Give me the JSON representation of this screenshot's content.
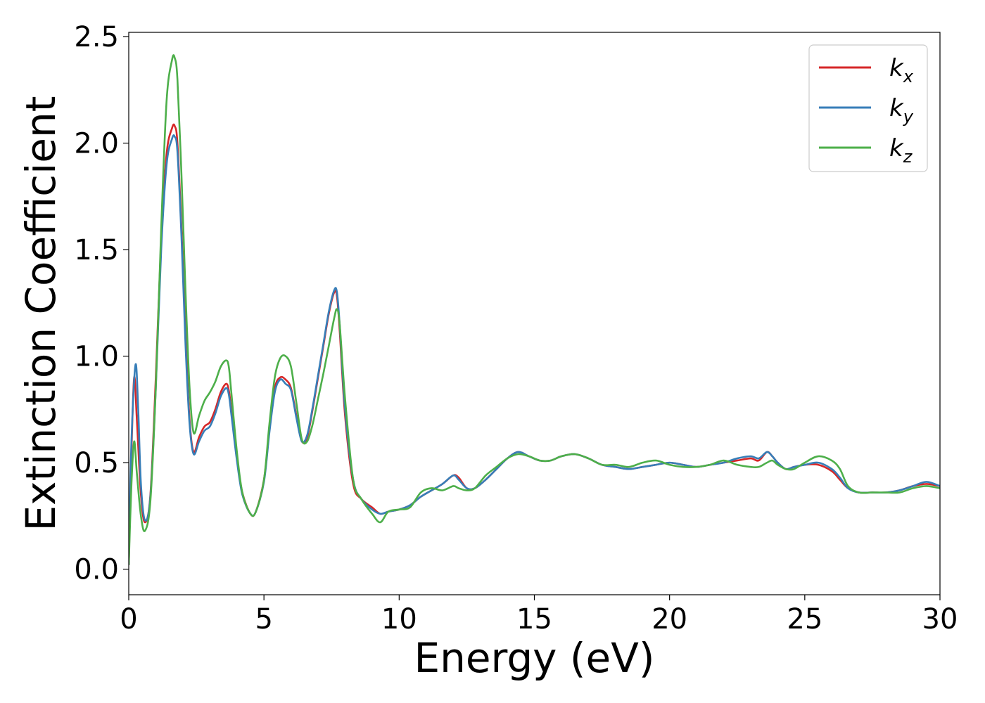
{
  "chart_data": {
    "type": "line",
    "title": "",
    "xlabel": "Energy (eV)",
    "ylabel": "Extinction Coefficient",
    "xlim": [
      0,
      30
    ],
    "ylim": [
      -0.12,
      2.52
    ],
    "xticks": [
      0,
      5,
      10,
      15,
      20,
      25,
      30
    ],
    "yticks": [
      0.0,
      0.5,
      1.0,
      1.5,
      2.0,
      2.5
    ],
    "xtick_labels": [
      "0",
      "5",
      "10",
      "15",
      "20",
      "25",
      "30"
    ],
    "ytick_labels": [
      "0.0",
      "0.5",
      "1.0",
      "1.5",
      "2.0",
      "2.5"
    ],
    "grid": false,
    "legend_position": "top-right",
    "series": [
      {
        "name": "k",
        "subscript": "x",
        "color": "#d62728",
        "x": [
          0,
          0.1,
          0.2,
          0.3,
          0.45,
          0.6,
          0.8,
          1.0,
          1.2,
          1.4,
          1.6,
          1.7,
          1.8,
          1.95,
          2.1,
          2.25,
          2.4,
          2.6,
          2.8,
          3.0,
          3.2,
          3.4,
          3.6,
          3.7,
          3.8,
          4.0,
          4.2,
          4.5,
          4.7,
          5.0,
          5.2,
          5.4,
          5.6,
          5.8,
          6.0,
          6.2,
          6.4,
          6.6,
          6.8,
          7.0,
          7.2,
          7.4,
          7.6,
          7.7,
          7.8,
          8.0,
          8.3,
          8.6,
          9.0,
          9.3,
          9.6,
          10.0,
          10.4,
          10.8,
          11.2,
          11.6,
          12.0,
          12.2,
          12.5,
          12.8,
          13.2,
          13.6,
          14.0,
          14.4,
          14.8,
          15.2,
          15.6,
          16.0,
          16.5,
          17.0,
          17.5,
          18.0,
          18.5,
          19.0,
          19.5,
          20.0,
          20.5,
          21.0,
          21.5,
          22.0,
          22.5,
          23.0,
          23.3,
          23.6,
          23.8,
          24.0,
          24.3,
          24.6,
          25.0,
          25.5,
          26.0,
          26.3,
          26.6,
          27.0,
          27.5,
          28.0,
          28.5,
          29.0,
          29.5,
          30.0
        ],
        "y": [
          0.02,
          0.55,
          0.9,
          0.7,
          0.35,
          0.22,
          0.35,
          0.9,
          1.55,
          1.95,
          2.07,
          2.08,
          2.0,
          1.6,
          1.1,
          0.7,
          0.55,
          0.62,
          0.67,
          0.69,
          0.75,
          0.83,
          0.87,
          0.84,
          0.74,
          0.52,
          0.36,
          0.26,
          0.27,
          0.42,
          0.65,
          0.85,
          0.9,
          0.89,
          0.85,
          0.72,
          0.6,
          0.62,
          0.75,
          0.9,
          1.05,
          1.2,
          1.3,
          1.28,
          1.12,
          0.72,
          0.4,
          0.33,
          0.29,
          0.26,
          0.27,
          0.28,
          0.3,
          0.34,
          0.37,
          0.4,
          0.44,
          0.43,
          0.38,
          0.38,
          0.42,
          0.47,
          0.52,
          0.55,
          0.53,
          0.51,
          0.51,
          0.53,
          0.54,
          0.52,
          0.49,
          0.48,
          0.47,
          0.48,
          0.49,
          0.5,
          0.49,
          0.48,
          0.49,
          0.5,
          0.51,
          0.52,
          0.51,
          0.55,
          0.53,
          0.5,
          0.47,
          0.48,
          0.49,
          0.49,
          0.46,
          0.42,
          0.38,
          0.36,
          0.36,
          0.36,
          0.37,
          0.39,
          0.4,
          0.39
        ]
      },
      {
        "name": "k",
        "subscript": "y",
        "color": "#377eb8",
        "x": [
          0,
          0.1,
          0.25,
          0.35,
          0.45,
          0.6,
          0.8,
          1.0,
          1.2,
          1.4,
          1.6,
          1.7,
          1.8,
          1.95,
          2.1,
          2.25,
          2.4,
          2.6,
          2.8,
          3.0,
          3.2,
          3.4,
          3.6,
          3.7,
          3.8,
          4.0,
          4.2,
          4.5,
          4.7,
          5.0,
          5.2,
          5.4,
          5.6,
          5.8,
          6.0,
          6.2,
          6.4,
          6.6,
          6.8,
          7.0,
          7.2,
          7.4,
          7.6,
          7.7,
          7.8,
          8.0,
          8.3,
          8.6,
          9.0,
          9.3,
          9.6,
          10.0,
          10.4,
          10.8,
          11.2,
          11.6,
          12.0,
          12.2,
          12.5,
          12.8,
          13.2,
          13.6,
          14.0,
          14.4,
          14.8,
          15.2,
          15.6,
          16.0,
          16.5,
          17.0,
          17.5,
          18.0,
          18.5,
          19.0,
          19.5,
          20.0,
          20.5,
          21.0,
          21.5,
          22.0,
          22.5,
          23.0,
          23.3,
          23.6,
          23.8,
          24.0,
          24.3,
          24.6,
          25.0,
          25.5,
          26.0,
          26.3,
          26.6,
          27.0,
          27.5,
          28.0,
          28.5,
          29.0,
          29.5,
          30.0
        ],
        "y": [
          0.02,
          0.6,
          0.96,
          0.75,
          0.4,
          0.23,
          0.34,
          0.85,
          1.5,
          1.9,
          2.02,
          2.03,
          1.96,
          1.56,
          1.05,
          0.68,
          0.54,
          0.6,
          0.65,
          0.67,
          0.73,
          0.81,
          0.85,
          0.82,
          0.72,
          0.51,
          0.35,
          0.26,
          0.27,
          0.41,
          0.64,
          0.83,
          0.89,
          0.87,
          0.84,
          0.71,
          0.6,
          0.63,
          0.76,
          0.91,
          1.06,
          1.21,
          1.31,
          1.3,
          1.15,
          0.75,
          0.42,
          0.33,
          0.28,
          0.26,
          0.27,
          0.28,
          0.3,
          0.34,
          0.37,
          0.4,
          0.44,
          0.42,
          0.38,
          0.38,
          0.42,
          0.47,
          0.52,
          0.55,
          0.53,
          0.51,
          0.51,
          0.53,
          0.54,
          0.52,
          0.49,
          0.48,
          0.47,
          0.48,
          0.49,
          0.5,
          0.49,
          0.48,
          0.49,
          0.5,
          0.52,
          0.53,
          0.52,
          0.55,
          0.53,
          0.5,
          0.47,
          0.48,
          0.49,
          0.5,
          0.47,
          0.43,
          0.38,
          0.36,
          0.36,
          0.36,
          0.37,
          0.39,
          0.41,
          0.39
        ]
      },
      {
        "name": "k",
        "subscript": "z",
        "color": "#4daf4a",
        "x": [
          0,
          0.1,
          0.2,
          0.3,
          0.45,
          0.6,
          0.8,
          1.0,
          1.2,
          1.4,
          1.6,
          1.7,
          1.8,
          1.95,
          2.1,
          2.25,
          2.4,
          2.6,
          2.8,
          3.0,
          3.2,
          3.4,
          3.6,
          3.7,
          3.8,
          4.0,
          4.2,
          4.5,
          4.7,
          5.0,
          5.2,
          5.4,
          5.6,
          5.8,
          6.0,
          6.2,
          6.4,
          6.6,
          6.8,
          7.0,
          7.2,
          7.4,
          7.6,
          7.7,
          7.8,
          8.0,
          8.3,
          8.6,
          9.0,
          9.3,
          9.6,
          10.0,
          10.4,
          10.8,
          11.2,
          11.6,
          12.0,
          12.2,
          12.5,
          12.8,
          13.2,
          13.6,
          14.0,
          14.4,
          14.8,
          15.2,
          15.6,
          16.0,
          16.5,
          17.0,
          17.5,
          18.0,
          18.5,
          19.0,
          19.5,
          20.0,
          20.5,
          21.0,
          21.5,
          22.0,
          22.5,
          23.0,
          23.3,
          23.6,
          23.8,
          24.0,
          24.3,
          24.6,
          25.0,
          25.5,
          26.0,
          26.3,
          26.6,
          27.0,
          27.5,
          28.0,
          28.5,
          29.0,
          29.5,
          30.0
        ],
        "y": [
          0.02,
          0.4,
          0.6,
          0.45,
          0.25,
          0.18,
          0.32,
          0.85,
          1.6,
          2.2,
          2.39,
          2.4,
          2.3,
          1.85,
          1.3,
          0.85,
          0.64,
          0.72,
          0.79,
          0.83,
          0.88,
          0.95,
          0.98,
          0.95,
          0.82,
          0.55,
          0.36,
          0.26,
          0.27,
          0.42,
          0.68,
          0.9,
          0.99,
          1.0,
          0.95,
          0.78,
          0.61,
          0.6,
          0.68,
          0.8,
          0.92,
          1.05,
          1.18,
          1.22,
          1.15,
          0.8,
          0.42,
          0.33,
          0.26,
          0.22,
          0.27,
          0.28,
          0.29,
          0.36,
          0.38,
          0.37,
          0.39,
          0.38,
          0.37,
          0.38,
          0.44,
          0.48,
          0.52,
          0.54,
          0.53,
          0.51,
          0.51,
          0.53,
          0.54,
          0.52,
          0.49,
          0.49,
          0.48,
          0.5,
          0.51,
          0.49,
          0.48,
          0.48,
          0.49,
          0.51,
          0.49,
          0.48,
          0.48,
          0.5,
          0.51,
          0.49,
          0.47,
          0.47,
          0.5,
          0.53,
          0.51,
          0.47,
          0.39,
          0.36,
          0.36,
          0.36,
          0.36,
          0.38,
          0.39,
          0.38
        ]
      }
    ]
  }
}
